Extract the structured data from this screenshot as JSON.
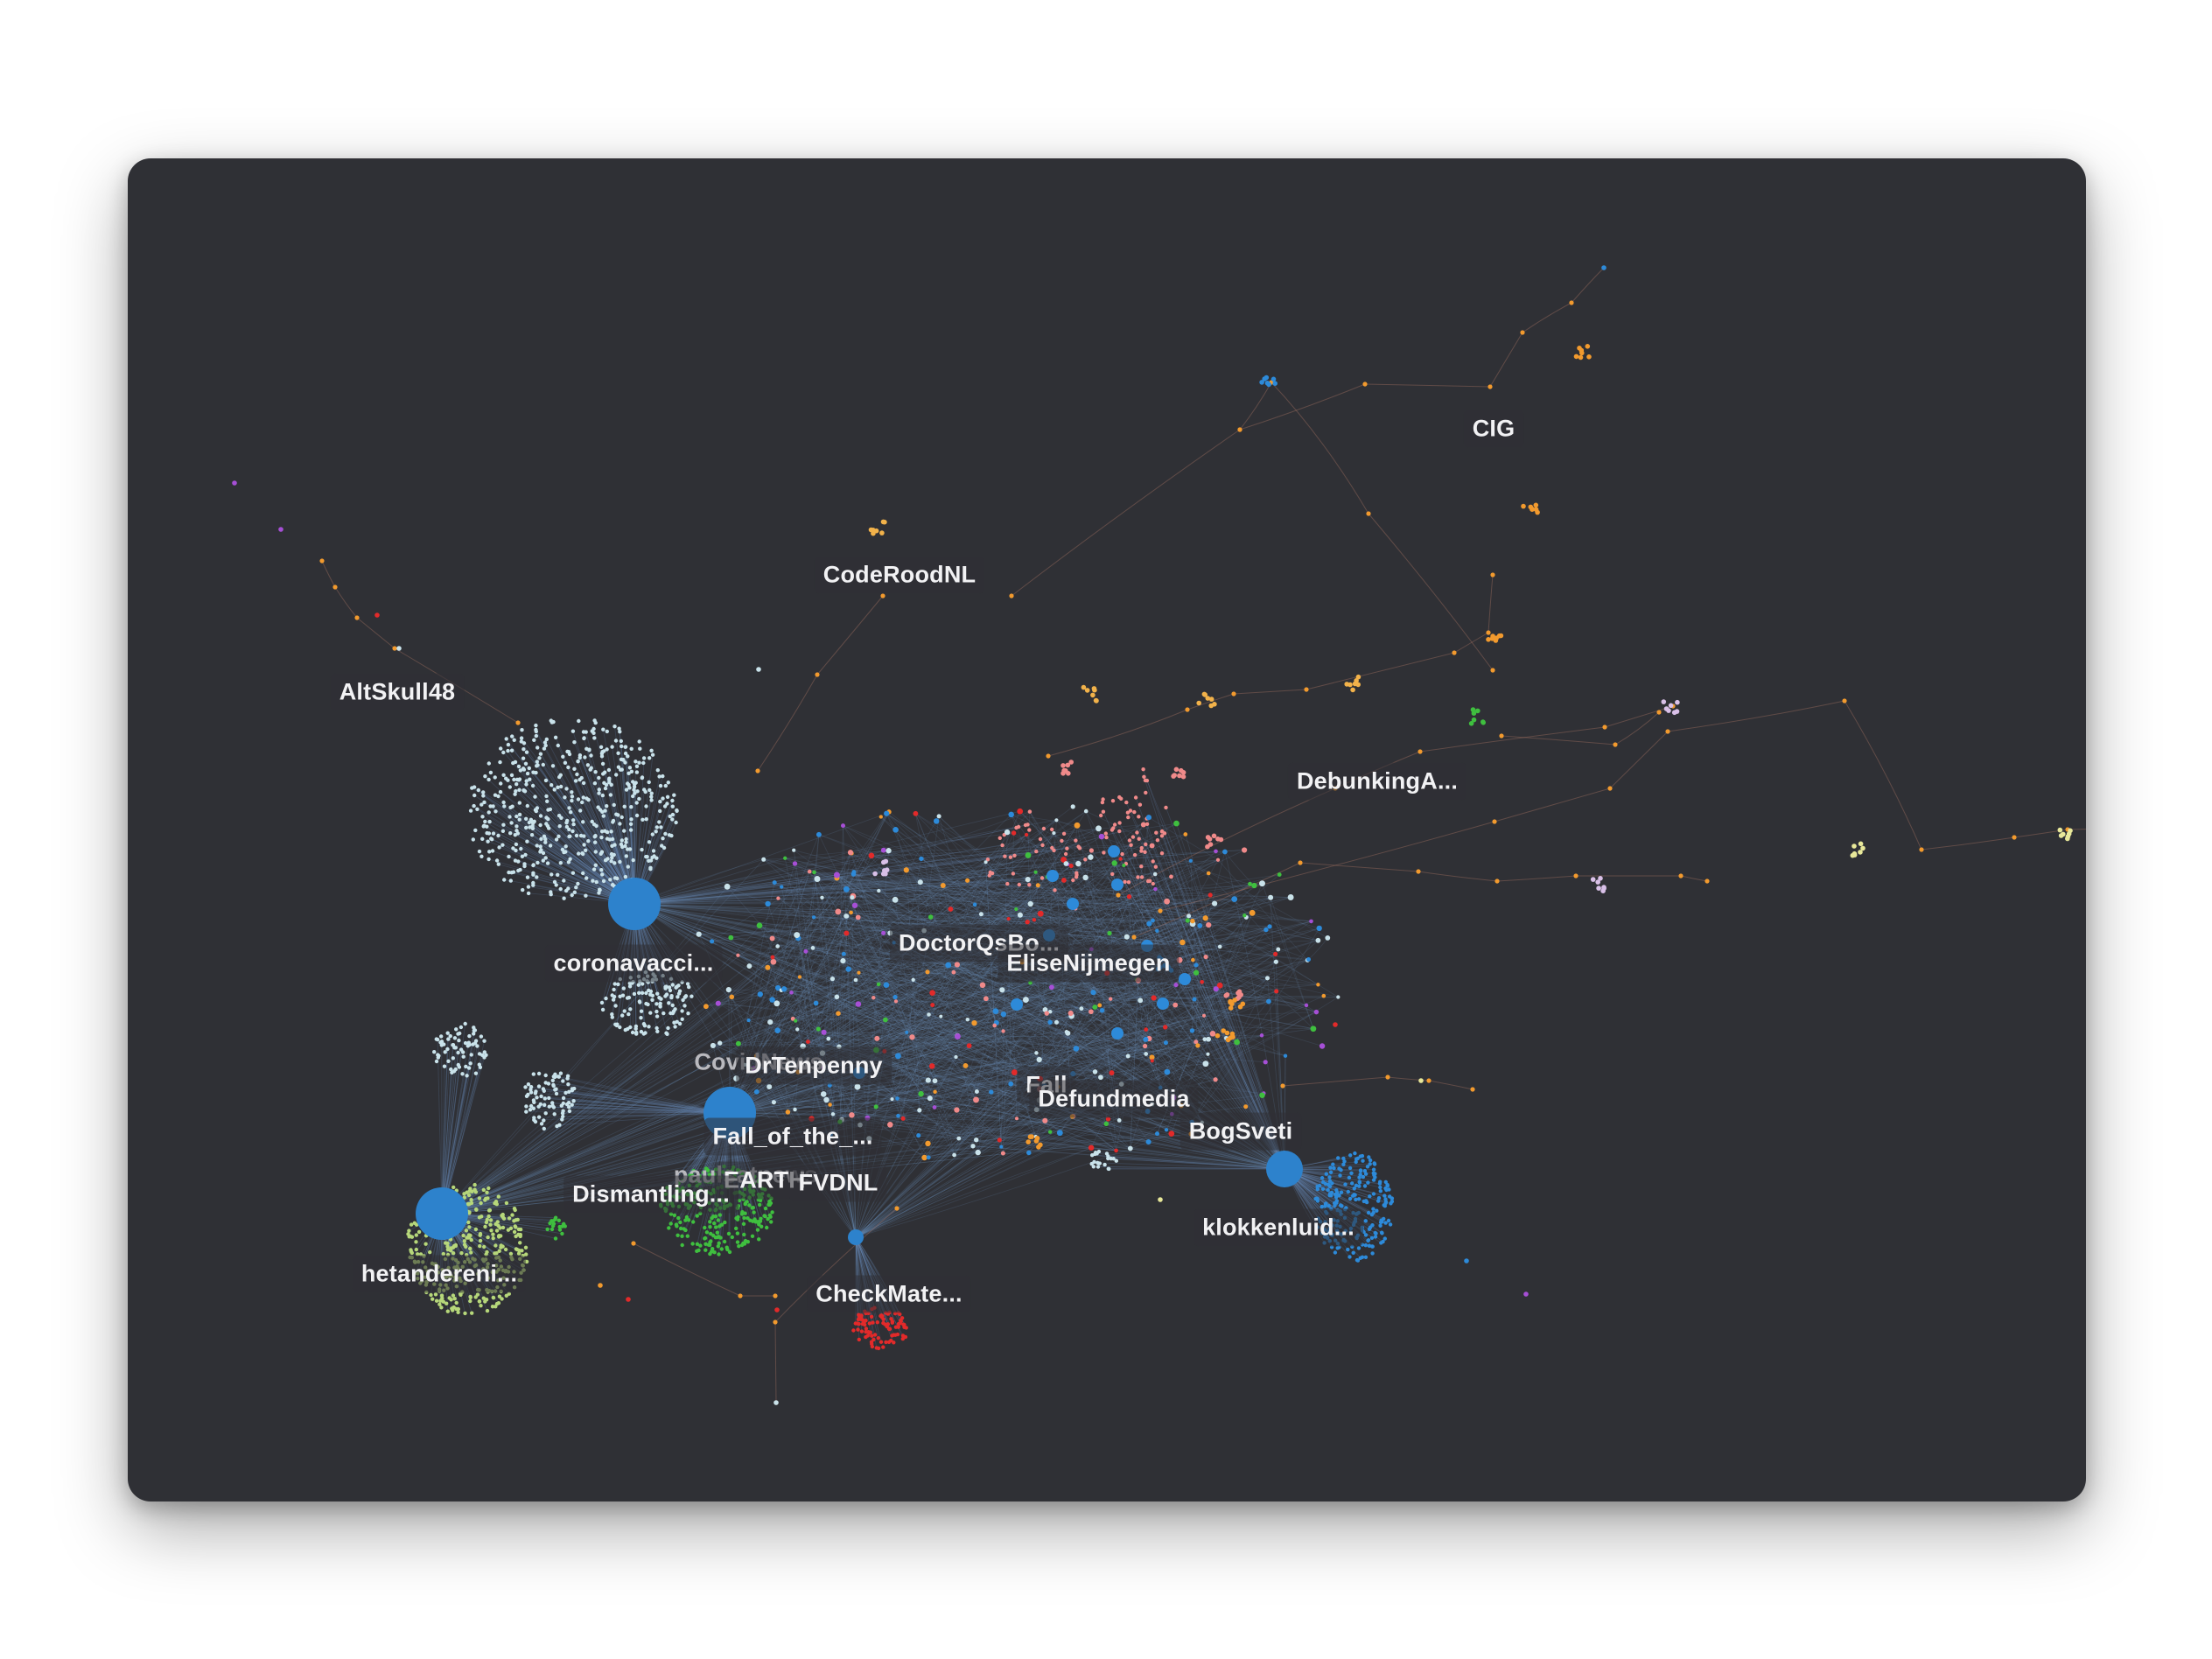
{
  "graph": {
    "background": "#2f3035",
    "edge_color": "#6f93c2",
    "labels": [
      {
        "id": "cig",
        "text": "CIG"
      },
      {
        "id": "coderoodnl",
        "text": "CodeRoodNL"
      },
      {
        "id": "altskull48",
        "text": "AltSkull48"
      },
      {
        "id": "debunkinga",
        "text": "DebunkingA..."
      },
      {
        "id": "coronavacci",
        "text": "coronavacci..."
      },
      {
        "id": "doctorqsbo",
        "text": "DoctorQsBo..."
      },
      {
        "id": "elisenijmegen",
        "text": "EliseNijmegen"
      },
      {
        "id": "covnews",
        "text": "CovidNews"
      },
      {
        "id": "drtenpenny",
        "text": "DrTenpenny"
      },
      {
        "id": "fall",
        "text": "Fall"
      },
      {
        "id": "defundmedia",
        "text": "Defundmedia"
      },
      {
        "id": "bogsveti",
        "text": "BogSveti"
      },
      {
        "id": "fall-of-the",
        "text": "Fall_of_the_..."
      },
      {
        "id": "paulsatnews",
        "text": "paulsatnews"
      },
      {
        "id": "earthfvdnl",
        "text": "EARTH"
      },
      {
        "id": "fvdnl",
        "text": "FVDNL"
      },
      {
        "id": "dismantling",
        "text": "Dismantling..."
      },
      {
        "id": "klokkenluid",
        "text": "klokkenluid..."
      },
      {
        "id": "hetandereni",
        "text": "hetandereni..."
      },
      {
        "id": "checkmate",
        "text": "CheckMate..."
      }
    ]
  }
}
